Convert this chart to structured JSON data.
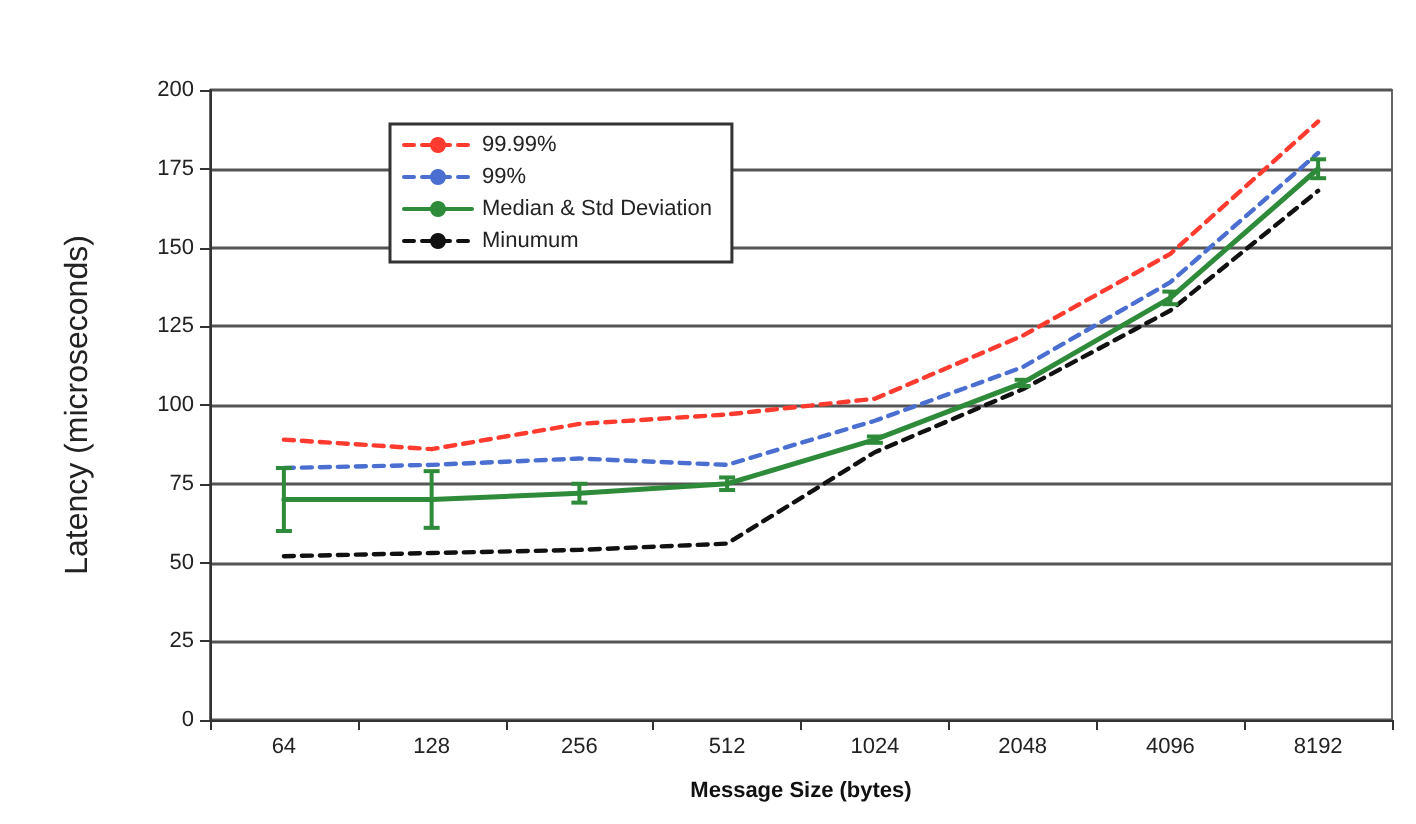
{
  "chart_data": {
    "type": "line",
    "xlabel": "Message Size (bytes)",
    "ylabel": "Latency (microseconds)",
    "categories": [
      "64",
      "128",
      "256",
      "512",
      "1024",
      "2048",
      "4096",
      "8192"
    ],
    "ylim": [
      0,
      200
    ],
    "yticks": [
      0,
      25,
      50,
      75,
      100,
      125,
      150,
      175,
      200
    ],
    "grid": "y",
    "legend": "top left",
    "marker": "none",
    "series": [
      {
        "name": "99.99%",
        "color": "#ff3b2f",
        "line_style": "dashed",
        "values": [
          89,
          86,
          94,
          97,
          102,
          122,
          148,
          190
        ]
      },
      {
        "name": "99%",
        "color": "#4a6fd0",
        "line_style": "dashed",
        "values": [
          80,
          81,
          83,
          81,
          95,
          112,
          139,
          180
        ]
      },
      {
        "name": "Median & Std Deviation",
        "color": "#2e8b3a",
        "line_style": "solid",
        "values": [
          70,
          70,
          72,
          75,
          89,
          107,
          134,
          175
        ],
        "errors": [
          10,
          9,
          3,
          2,
          1,
          1,
          2,
          3
        ]
      },
      {
        "name": "Minumum",
        "color": "#111111",
        "line_style": "dashed",
        "values": [
          52,
          53,
          54,
          56,
          85,
          105,
          130,
          168
        ]
      }
    ]
  }
}
